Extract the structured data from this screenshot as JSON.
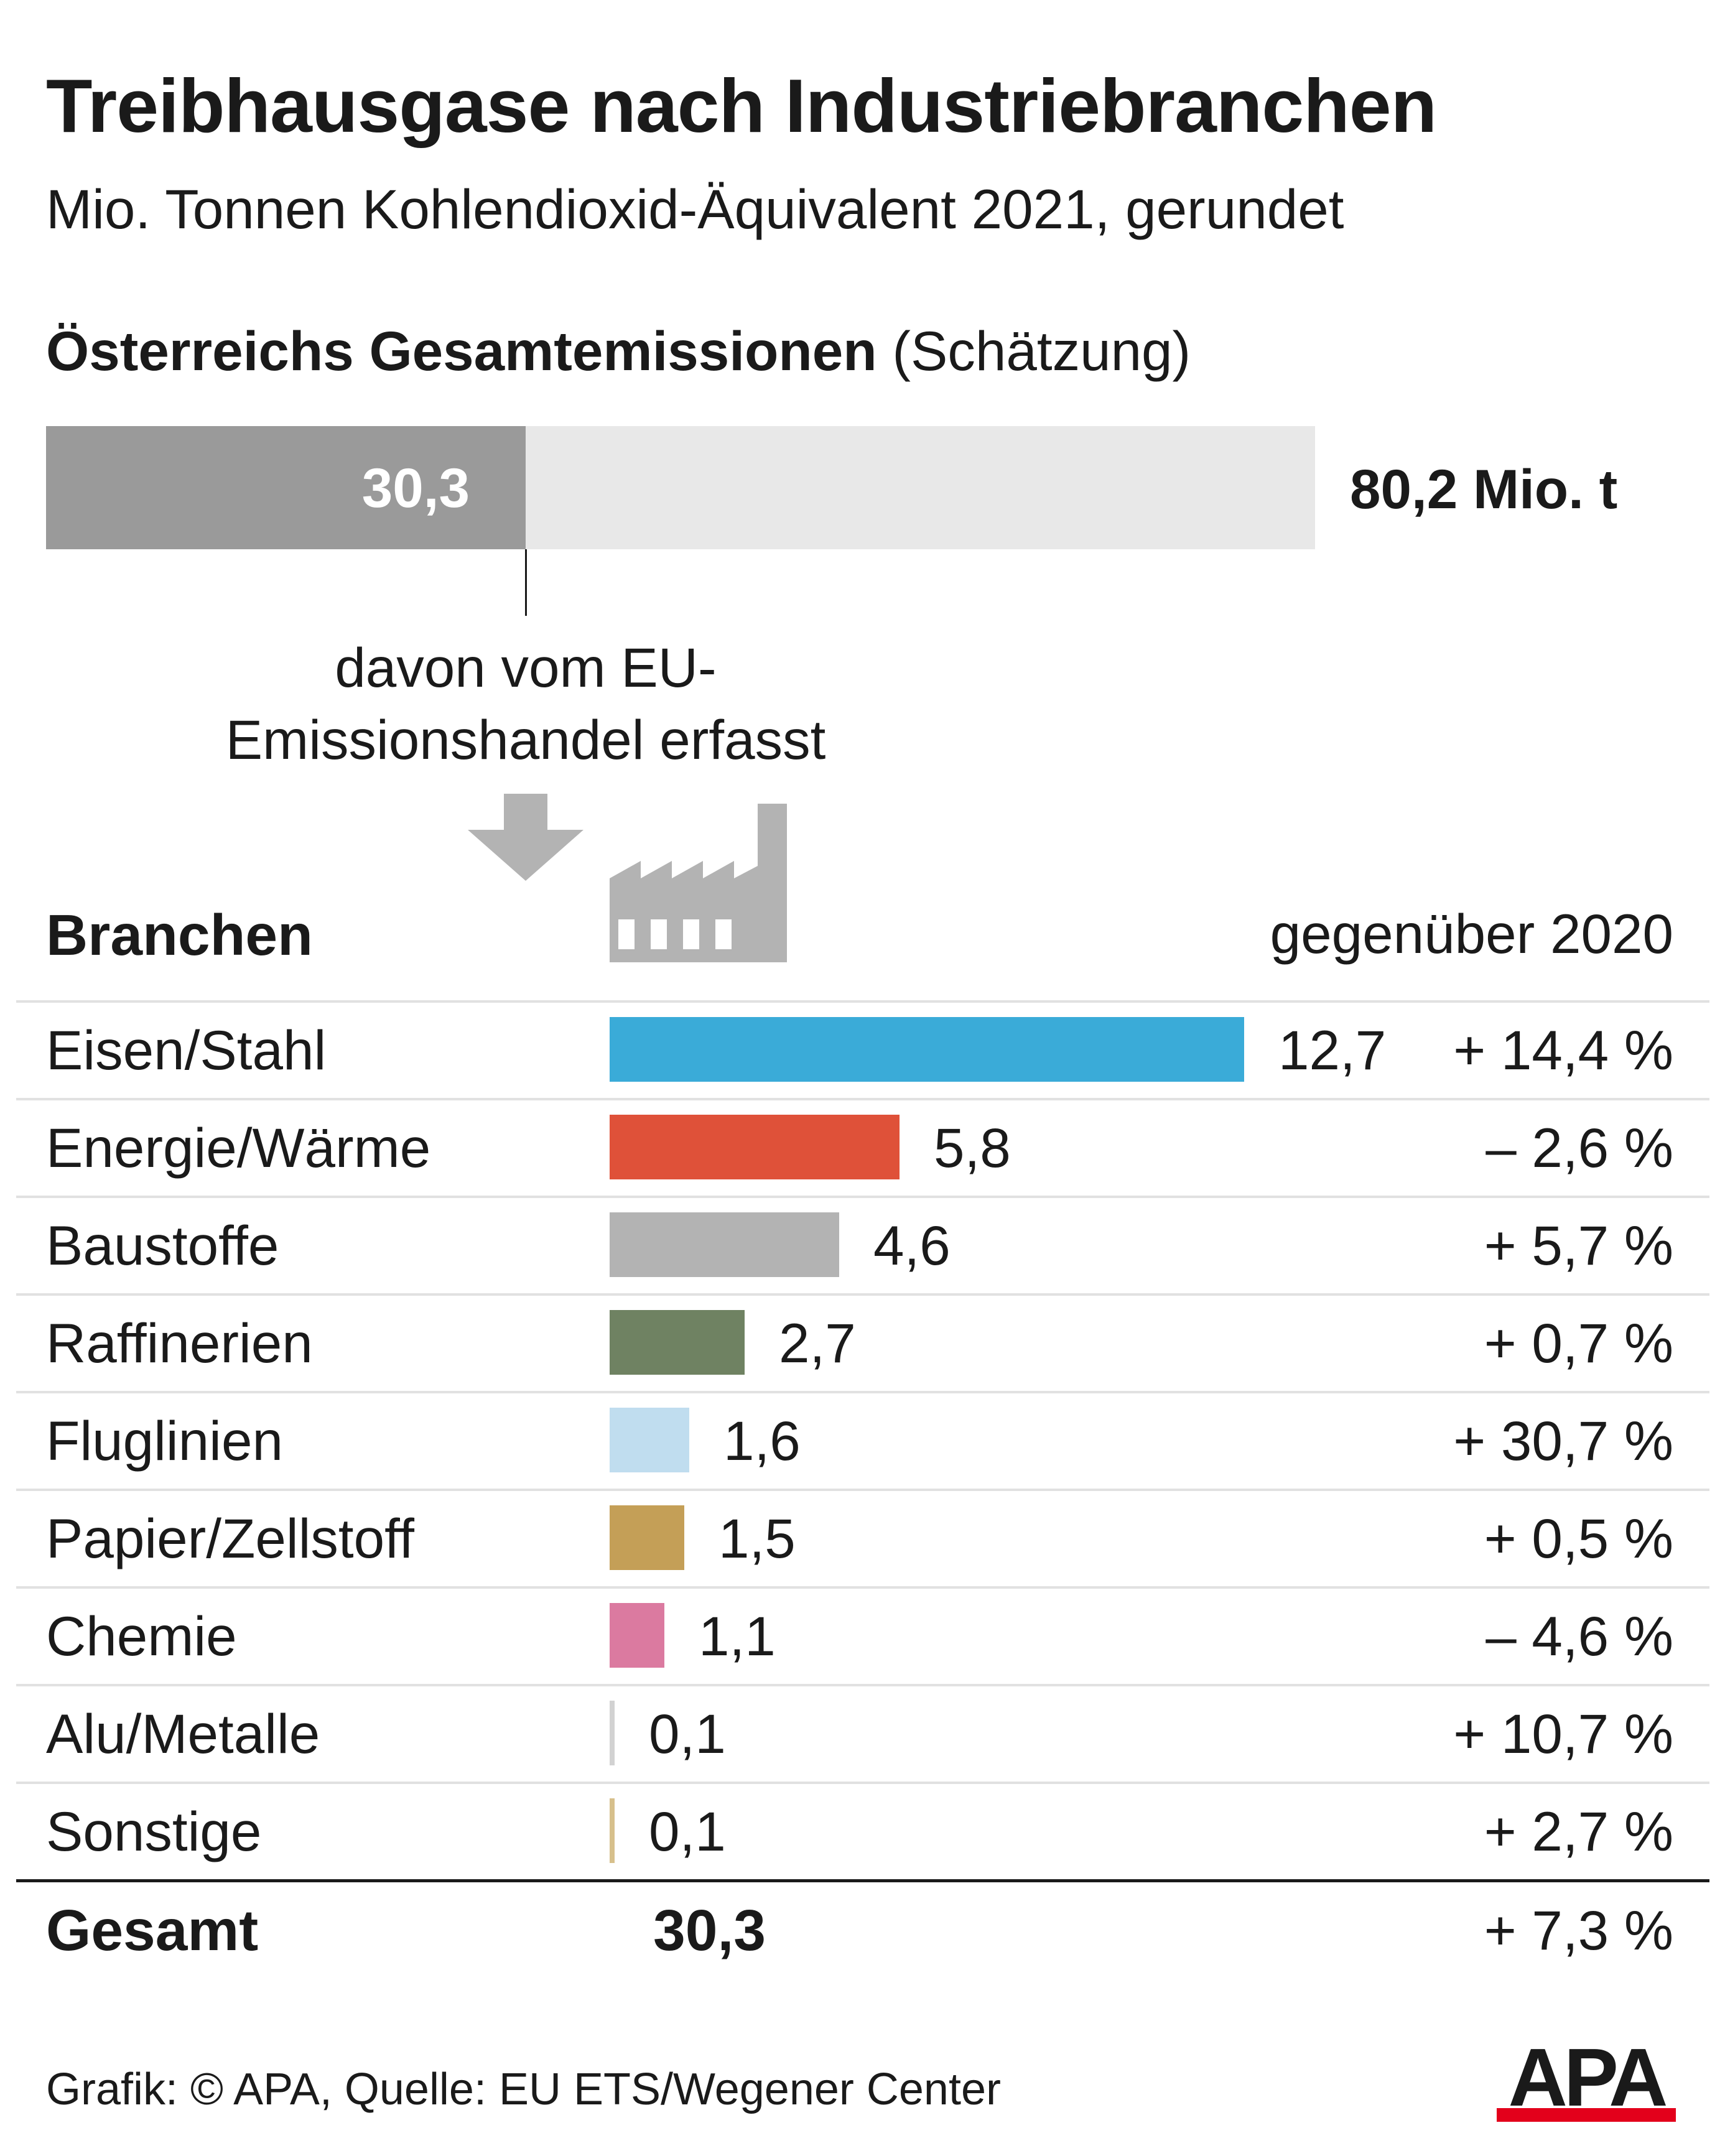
{
  "title": "Treibhausgase nach Industriebranchen",
  "subtitle": "Mio. Tonnen Kohlendioxid-Äquivalent 2021, gerundet",
  "total_section": {
    "heading_bold": "Österreichs Gesamtemissionen",
    "heading_normal": "(Schätzung)",
    "total_value": 80.2,
    "total_label": "80,2 Mio. t",
    "ets_value": 30.3,
    "ets_label": "30,3",
    "annotation": "davon vom EU-Emissionshandel erfasst"
  },
  "header": {
    "branchen": "Branchen",
    "change": "gegenüber 2020"
  },
  "chart_data": {
    "type": "bar",
    "orientation": "horizontal",
    "categories": [
      "Eisen/Stahl",
      "Energie/Wärme",
      "Baustoffe",
      "Raffinerien",
      "Fluglinien",
      "Papier/Zellstoff",
      "Chemie",
      "Alu/Metalle",
      "Sonstige"
    ],
    "values": [
      12.7,
      5.8,
      4.6,
      2.7,
      1.6,
      1.5,
      1.1,
      0.1,
      0.1
    ],
    "value_labels": [
      "12,7",
      "5,8",
      "4,6",
      "2,7",
      "1,6",
      "1,5",
      "1,1",
      "0,1",
      "0,1"
    ],
    "change_labels": [
      "+ 14,4 %",
      "– 2,6 %",
      "+ 5,7 %",
      "+ 0,7 %",
      "+ 30,7 %",
      "+ 0,5 %",
      "– 4,6 %",
      "+ 10,7 %",
      "+ 2,7 %"
    ],
    "change_values": [
      14.4,
      -2.6,
      5.7,
      0.7,
      30.7,
      0.5,
      -4.6,
      10.7,
      2.7
    ],
    "colors": [
      "#3aabd8",
      "#df5139",
      "#b3b3b3",
      "#6f8262",
      "#c0ddef",
      "#c49f57",
      "#db7aa0",
      "#d2d2d2",
      "#d7c08c"
    ]
  },
  "gesamt": {
    "label": "Gesamt",
    "value": "30,3",
    "change": "+ 7,3 %"
  },
  "footer": "Grafik: © APA, Quelle: EU ETS/Wegener Center",
  "logo_text": "APA",
  "logo_color": "#e3001b"
}
